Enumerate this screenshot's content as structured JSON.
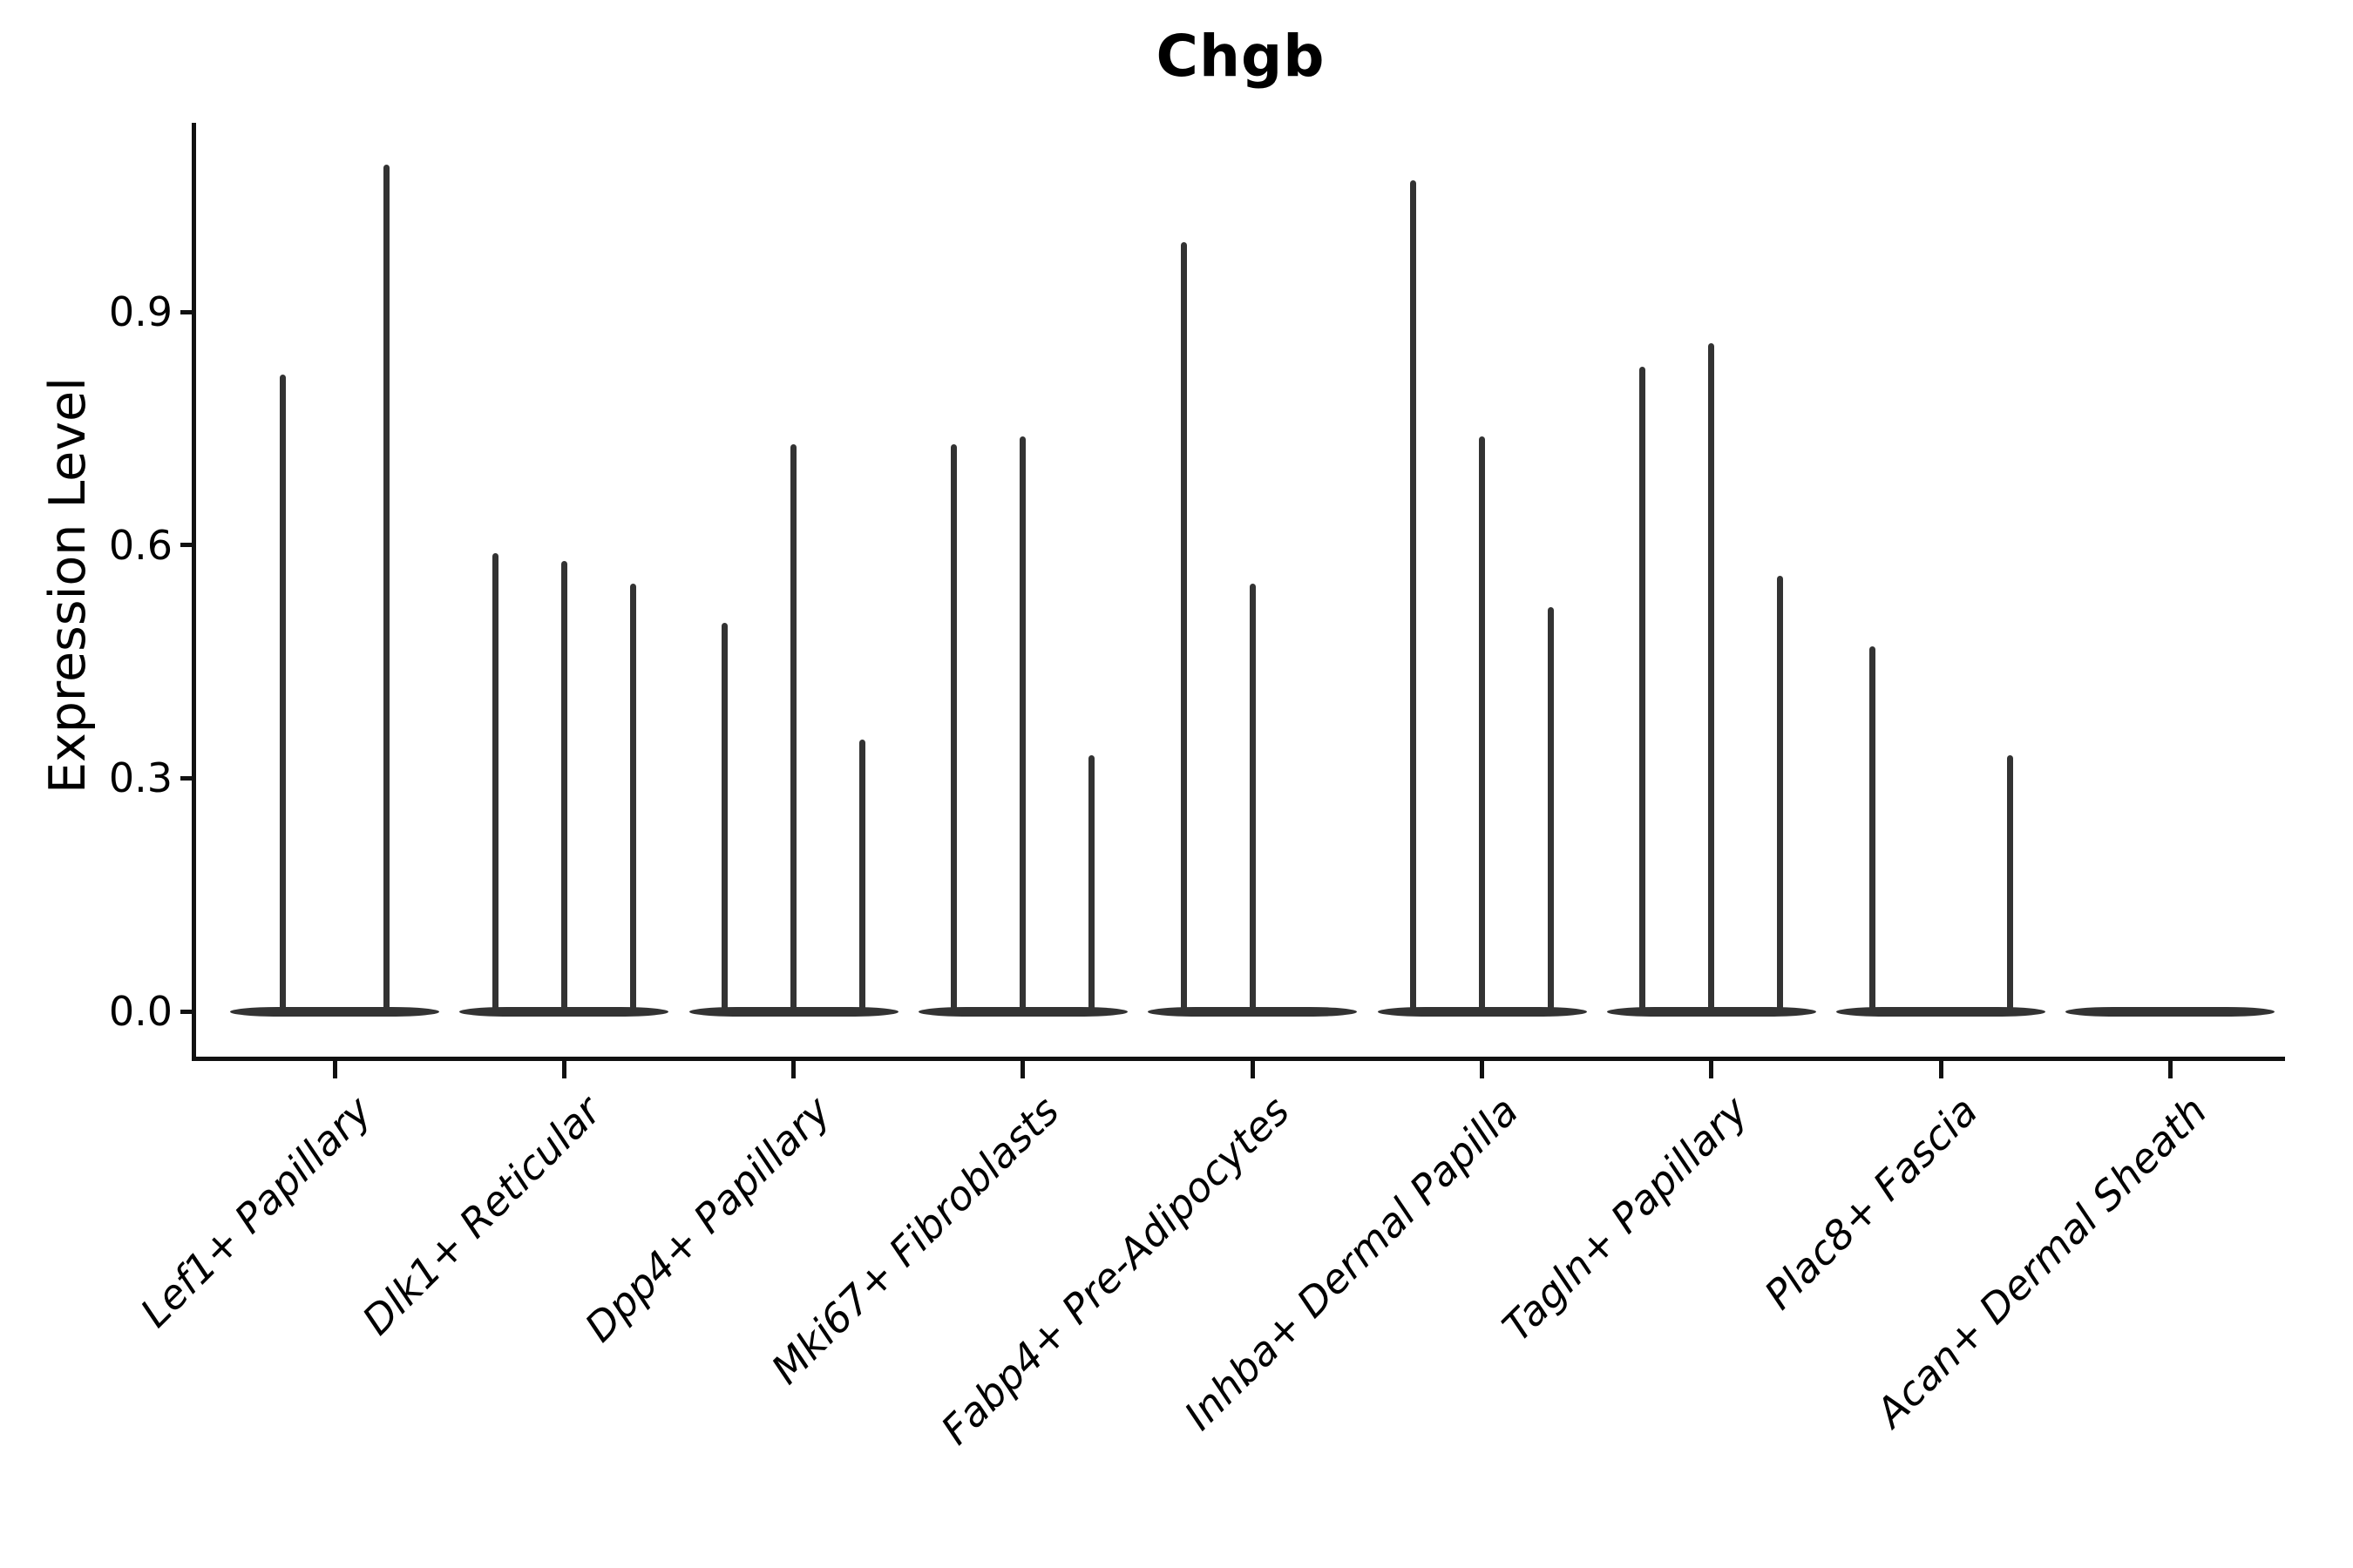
{
  "title": "Chgb",
  "y_axis": {
    "label": "Expression Level",
    "tick_labels": [
      "0.0",
      "0.3",
      "0.6",
      "0.9"
    ],
    "tick_values": [
      0.0,
      0.3,
      0.6,
      0.9
    ]
  },
  "chart_data": {
    "type": "violin",
    "title": "Chgb",
    "xlabel": "",
    "ylabel": "Expression Level",
    "ylim": [
      0,
      1.14
    ],
    "yticks": [
      0.0,
      0.3,
      0.6,
      0.9
    ],
    "ytick_labels": [
      "0.0",
      "0.3",
      "0.6",
      "0.9"
    ],
    "grid": false,
    "legend": "none",
    "x_tick_rotation_deg": 45,
    "x_tick_font_style": "italic",
    "violin_color": "#333333",
    "spine_color": "#111111",
    "description": "Narrow spike-shaped violins; bulk of density sits at expression 0 (flat lens at baseline), thin spikes rise to the maximum expression per violin. Violins with max 0 render as baseline only.",
    "categories": [
      "Lef1+ Papillary",
      "Dlk1+ Reticular",
      "Dpp4+ Papillary",
      "Mki67+ Fibroblasts",
      "Fabp4+ Pre-Adipocytes",
      "Inhba+ Dermal Papilla",
      "Tagln+ Papillary",
      "Plac8+ Fascia",
      "Acan+ Dermal Sheath"
    ],
    "groups": [
      {
        "category": "Lef1+ Papillary",
        "violin_max_expression": [
          0.82,
          1.09
        ]
      },
      {
        "category": "Dlk1+ Reticular",
        "violin_max_expression": [
          0.59,
          0.58,
          0.55
        ]
      },
      {
        "category": "Dpp4+ Papillary",
        "violin_max_expression": [
          0.5,
          0.73,
          0.35
        ]
      },
      {
        "category": "Mki67+ Fibroblasts",
        "violin_max_expression": [
          0.73,
          0.74,
          0.33
        ]
      },
      {
        "category": "Fabp4+ Pre-Adipocytes",
        "violin_max_expression": [
          0.99,
          0.55,
          0.0
        ]
      },
      {
        "category": "Inhba+ Dermal Papilla",
        "violin_max_expression": [
          1.07,
          0.74,
          0.52
        ]
      },
      {
        "category": "Tagln+ Papillary",
        "violin_max_expression": [
          0.83,
          0.86,
          0.56
        ]
      },
      {
        "category": "Plac8+ Fascia",
        "violin_max_expression": [
          0.47,
          0.0,
          0.33
        ]
      },
      {
        "category": "Acan+ Dermal Sheath",
        "violin_max_expression": [
          0.0,
          0.0,
          0.0
        ]
      }
    ]
  }
}
